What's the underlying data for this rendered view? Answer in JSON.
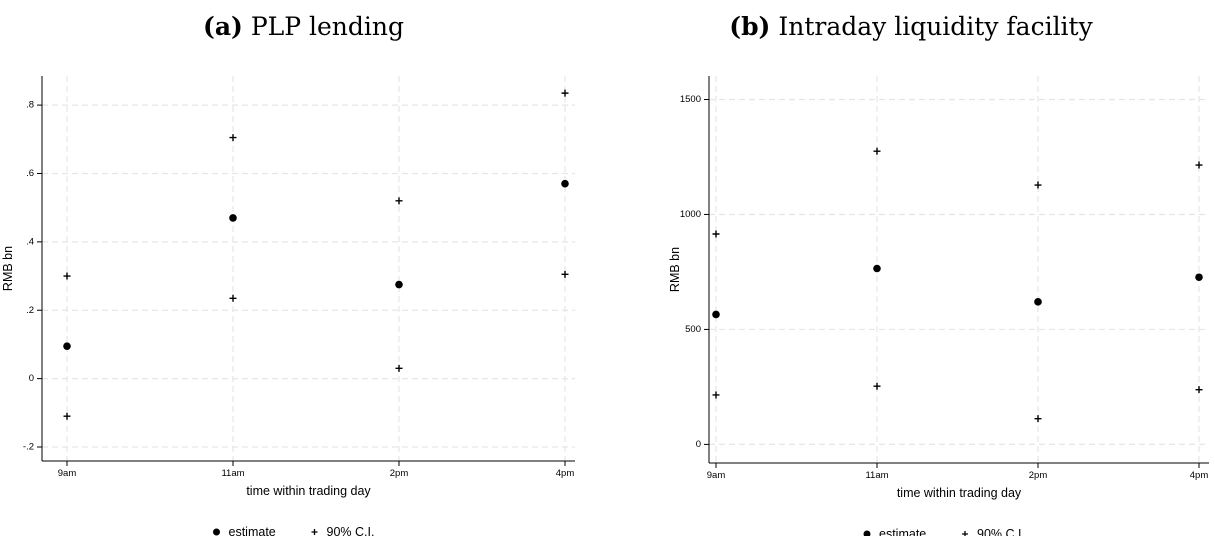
{
  "chart_data": [
    {
      "type": "scatter",
      "panel_label": "(a)",
      "title": "PLP lending",
      "xlabel": "time within trading day",
      "ylabel": "RMB bn",
      "categories": [
        "9am",
        "11am",
        "2pm",
        "4pm"
      ],
      "ylim": [
        -0.2,
        0.85
      ],
      "yticks": [
        -0.2,
        0,
        0.2,
        0.4,
        0.6,
        0.8
      ],
      "ytick_labels": [
        "-.2",
        "0",
        ".2",
        ".4",
        ".6",
        ".8"
      ],
      "grid": true,
      "legend_position": "bottom",
      "series": [
        {
          "name": "estimate",
          "marker": "circle",
          "values": [
            0.095,
            0.47,
            0.275,
            0.57
          ]
        },
        {
          "name": "90% C.I.",
          "marker": "plus",
          "values": [
            0.3,
            0.705,
            0.52,
            0.835
          ]
        },
        {
          "name": "90% C.I.",
          "marker": "plus",
          "values": [
            -0.11,
            0.235,
            0.03,
            0.305
          ]
        }
      ]
    },
    {
      "type": "scatter",
      "panel_label": "(b)",
      "title": "Intraday liquidity facility",
      "xlabel": "time within trading day",
      "ylabel": "RMB bn",
      "categories": [
        "9am",
        "11am",
        "2pm",
        "4pm"
      ],
      "ylim": [
        -20,
        1550
      ],
      "yticks": [
        0,
        500,
        1000,
        1500
      ],
      "ytick_labels": [
        "0",
        "500",
        "1000",
        "1500"
      ],
      "grid": true,
      "legend_position": "bottom",
      "series": [
        {
          "name": "estimate",
          "marker": "circle",
          "values": [
            565,
            765,
            620,
            727
          ]
        },
        {
          "name": "90% C.I.",
          "marker": "plus",
          "values": [
            915,
            1275,
            1128,
            1215
          ]
        },
        {
          "name": "90% C.I.",
          "marker": "plus",
          "values": [
            215,
            253,
            112,
            238
          ]
        }
      ]
    }
  ],
  "legend": {
    "estimate_label": "estimate",
    "ci_label": "90% C.I."
  },
  "colors": {
    "marker": "#000000",
    "grid": "#e6e6e6",
    "axis": "#000000"
  }
}
